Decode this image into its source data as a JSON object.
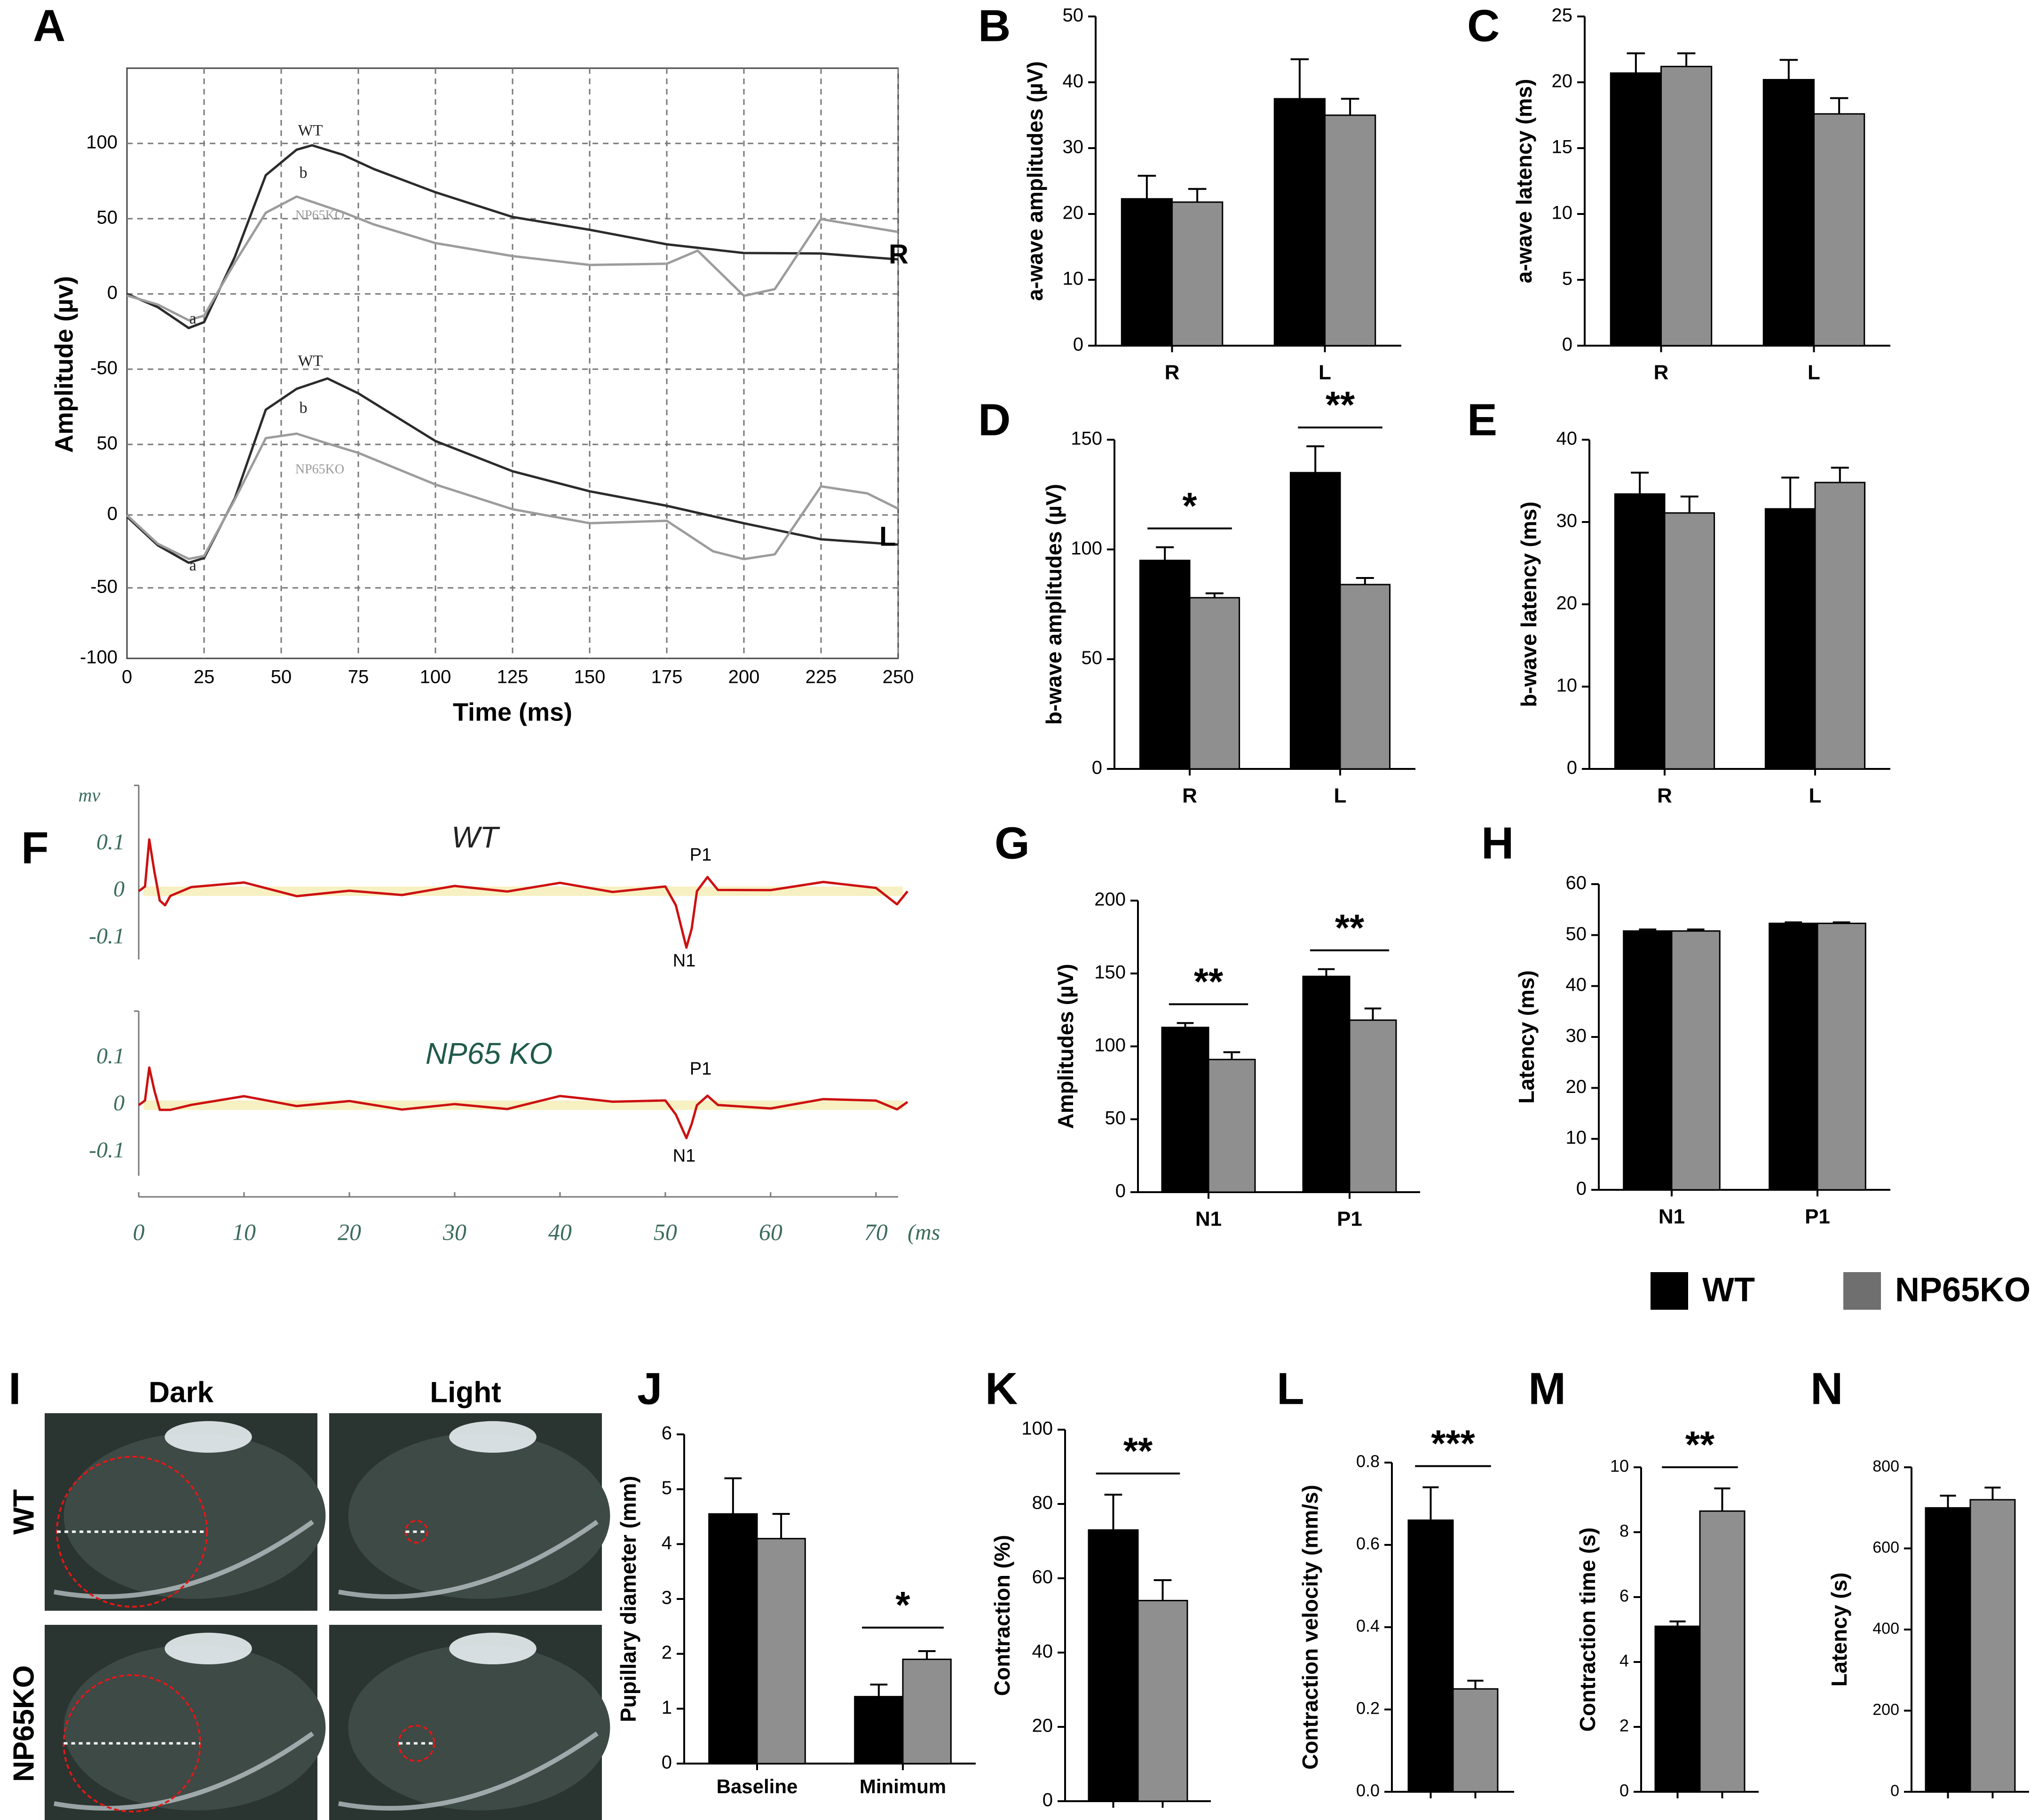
{
  "figure": {
    "panel_letters": [
      "A",
      "B",
      "C",
      "D",
      "E",
      "F",
      "G",
      "H",
      "I",
      "J",
      "K",
      "L",
      "M",
      "N"
    ],
    "legend": {
      "items": [
        {
          "label": "WT",
          "color": "#000000"
        },
        {
          "label": "NP65KO",
          "color": "#8f8f8f"
        }
      ]
    },
    "colors": {
      "wt": "#000000",
      "ko": "#8f8f8f",
      "trace_red": "#cc1111",
      "photo_bg": "#2a3430",
      "ring": "#e01818"
    }
  },
  "chart_data": [
    {
      "panel": "A",
      "type": "line",
      "xlabel": "Time (ms)",
      "ylabel": "Amplitude (µv)",
      "x_ticks": [
        "0",
        "25",
        "50",
        "75",
        "100",
        "125",
        "150",
        "175",
        "200",
        "225",
        "250"
      ],
      "y_ticks": [
        "100",
        "50",
        "0",
        "-50",
        "50",
        "0",
        "-50",
        "-100"
      ],
      "trace_labels": [
        "WT",
        "b",
        "NP65KO",
        "a"
      ],
      "channel_labels": [
        "R",
        "L"
      ],
      "xlim": [
        0,
        250
      ],
      "series": [
        {
          "name": "WT R",
          "x": [
            0,
            10,
            20,
            25,
            35,
            45,
            55,
            60,
            70,
            80,
            100,
            125,
            150,
            175,
            200,
            225,
            250
          ],
          "y": [
            0,
            -10,
            -22,
            -20,
            25,
            80,
            95,
            100,
            92,
            82,
            68,
            50,
            42,
            34,
            28,
            26,
            22
          ]
        },
        {
          "name": "NP65KO R",
          "x": [
            0,
            10,
            20,
            25,
            35,
            45,
            55,
            60,
            70,
            80,
            100,
            125,
            150,
            175,
            185,
            200,
            210,
            225,
            250
          ],
          "y": [
            0,
            -8,
            -18,
            -15,
            20,
            55,
            65,
            62,
            55,
            45,
            35,
            25,
            18,
            20,
            30,
            0,
            3,
            50,
            40
          ]
        },
        {
          "name": "WT L",
          "x": [
            0,
            10,
            20,
            25,
            35,
            45,
            55,
            65,
            75,
            100,
            125,
            150,
            175,
            200,
            225,
            250
          ],
          "y": [
            0,
            -20,
            -33,
            -28,
            10,
            70,
            85,
            90,
            80,
            50,
            30,
            15,
            5,
            -5,
            -15,
            -20
          ]
        },
        {
          "name": "NP65KO L",
          "x": [
            0,
            10,
            20,
            25,
            35,
            45,
            55,
            65,
            75,
            100,
            125,
            150,
            175,
            190,
            200,
            210,
            225,
            240,
            250
          ],
          "y": [
            0,
            -18,
            -30,
            -26,
            10,
            50,
            55,
            48,
            40,
            20,
            5,
            -5,
            -5,
            -25,
            -30,
            -25,
            20,
            15,
            5
          ]
        }
      ]
    },
    {
      "panel": "B",
      "type": "bar",
      "ylabel": "a-wave amplitudes (µV)",
      "categories": [
        "R",
        "L"
      ],
      "ylim": [
        0,
        50
      ],
      "y_ticks": [
        "0",
        "10",
        "20",
        "30",
        "40",
        "50"
      ],
      "series": [
        {
          "name": "WT",
          "values": [
            22.3,
            37.5
          ],
          "errors": [
            3.5,
            6.0
          ]
        },
        {
          "name": "NP65KO",
          "values": [
            21.8,
            35.0
          ],
          "errors": [
            2.0,
            2.5
          ]
        }
      ],
      "significance": []
    },
    {
      "panel": "C",
      "type": "bar",
      "ylabel": "a-wave latency (ms)",
      "categories": [
        "R",
        "L"
      ],
      "ylim": [
        0,
        25
      ],
      "y_ticks": [
        "0",
        "5",
        "10",
        "15",
        "20",
        "25"
      ],
      "series": [
        {
          "name": "WT",
          "values": [
            20.7,
            20.2
          ],
          "errors": [
            1.5,
            1.5
          ]
        },
        {
          "name": "NP65KO",
          "values": [
            21.2,
            17.6
          ],
          "errors": [
            1.0,
            1.2
          ]
        }
      ],
      "significance": []
    },
    {
      "panel": "D",
      "type": "bar",
      "ylabel": "b-wave amplitudes (µV)",
      "categories": [
        "R",
        "L"
      ],
      "ylim": [
        0,
        150
      ],
      "y_ticks": [
        "0",
        "50",
        "100",
        "150"
      ],
      "series": [
        {
          "name": "WT",
          "values": [
            95,
            135
          ],
          "errors": [
            6,
            12
          ]
        },
        {
          "name": "NP65KO",
          "values": [
            78,
            84
          ],
          "errors": [
            2,
            3
          ]
        }
      ],
      "significance": [
        "*",
        "**"
      ]
    },
    {
      "panel": "E",
      "type": "bar",
      "ylabel": "b-wave latency (ms)",
      "categories": [
        "R",
        "L"
      ],
      "ylim": [
        0,
        40
      ],
      "y_ticks": [
        "0",
        "10",
        "20",
        "30",
        "40"
      ],
      "series": [
        {
          "name": "WT",
          "values": [
            33.4,
            31.6
          ],
          "errors": [
            2.6,
            3.8
          ]
        },
        {
          "name": "NP65KO",
          "values": [
            31.1,
            34.8
          ],
          "errors": [
            2.0,
            1.8
          ]
        }
      ],
      "significance": []
    },
    {
      "panel": "F",
      "type": "line",
      "x_ticks": [
        "0",
        "10",
        "20",
        "30",
        "40",
        "50",
        "60",
        "70"
      ],
      "x_unit": "(ms",
      "y_unit": "mv",
      "y_ticks": [
        "0.1",
        "0",
        "-0.1"
      ],
      "groups": [
        "WT",
        "NP65 KO"
      ],
      "peak_labels": [
        "P1",
        "N1"
      ],
      "xlim": [
        0,
        73
      ],
      "series": [
        {
          "name": "WT",
          "x": [
            0,
            0.6,
            1,
            1.5,
            2,
            2.5,
            3,
            5,
            10,
            15,
            20,
            25,
            30,
            35,
            40,
            45,
            50,
            51,
            52,
            52.5,
            53,
            54,
            55,
            60,
            65,
            70,
            72,
            73
          ],
          "y": [
            0,
            0.01,
            0.11,
            0.04,
            -0.02,
            -0.03,
            -0.01,
            0.0,
            0.01,
            -0.01,
            0.01,
            0.0,
            0.01,
            -0.01,
            0.01,
            0.0,
            0.01,
            -0.03,
            -0.12,
            -0.08,
            0.0,
            0.03,
            0.01,
            0.0,
            0.01,
            0.0,
            -0.02,
            -0.01
          ]
        },
        {
          "name": "NP65 KO",
          "x": [
            0,
            0.6,
            1,
            1.5,
            2,
            3,
            5,
            10,
            15,
            20,
            25,
            30,
            35,
            40,
            45,
            50,
            51,
            52,
            52.5,
            53,
            54,
            55,
            60,
            65,
            70,
            72,
            73
          ],
          "y": [
            0,
            0.01,
            0.08,
            0.03,
            -0.01,
            -0.01,
            0.0,
            0.01,
            -0.01,
            0.01,
            0.0,
            0.01,
            -0.01,
            0.01,
            0.0,
            0.01,
            -0.02,
            -0.07,
            -0.04,
            0.0,
            0.02,
            0.01,
            0.0,
            0.01,
            0.0,
            -0.01,
            0.0
          ]
        }
      ]
    },
    {
      "panel": "G",
      "type": "bar",
      "ylabel": "Amplitudes (µV)",
      "categories": [
        "N1",
        "P1"
      ],
      "ylim": [
        0,
        200
      ],
      "y_ticks": [
        "0",
        "50",
        "100",
        "150",
        "200"
      ],
      "series": [
        {
          "name": "WT",
          "values": [
            113,
            148
          ],
          "errors": [
            3,
            5
          ]
        },
        {
          "name": "NP65KO",
          "values": [
            91,
            118
          ],
          "errors": [
            5,
            8
          ]
        }
      ],
      "significance": [
        "**",
        "**"
      ]
    },
    {
      "panel": "H",
      "type": "bar",
      "ylabel": "Latency (ms)",
      "categories": [
        "N1",
        "P1"
      ],
      "ylim": [
        0,
        60
      ],
      "y_ticks": [
        "0",
        "10",
        "20",
        "30",
        "40",
        "50",
        "60"
      ],
      "series": [
        {
          "name": "WT",
          "values": [
            50.8,
            52.3
          ],
          "errors": [
            0.3,
            0.2
          ]
        },
        {
          "name": "NP65KO",
          "values": [
            50.8,
            52.3
          ],
          "errors": [
            0.3,
            0.2
          ]
        }
      ],
      "significance": []
    },
    {
      "panel": "J",
      "type": "bar",
      "ylabel": "Pupillary diameter (mm)",
      "categories": [
        "Baseline",
        "Minimum"
      ],
      "ylim": [
        0,
        6
      ],
      "y_ticks": [
        "0",
        "1",
        "2",
        "3",
        "4",
        "5",
        "6"
      ],
      "series": [
        {
          "name": "WT",
          "values": [
            4.55,
            1.22
          ],
          "errors": [
            0.65,
            0.22
          ]
        },
        {
          "name": "NP65KO",
          "values": [
            4.1,
            1.9
          ],
          "errors": [
            0.45,
            0.15
          ]
        }
      ],
      "significance": [
        "",
        "*"
      ]
    },
    {
      "panel": "K",
      "type": "bar",
      "ylabel": "Contraction (%)",
      "categories": [
        ""
      ],
      "ylim": [
        0,
        100
      ],
      "y_ticks": [
        "0",
        "20",
        "40",
        "60",
        "80",
        "100"
      ],
      "series": [
        {
          "name": "WT",
          "values": [
            73
          ],
          "errors": [
            9.5
          ]
        },
        {
          "name": "NP65KO",
          "values": [
            54
          ],
          "errors": [
            5.5
          ]
        }
      ],
      "significance": [
        "**"
      ]
    },
    {
      "panel": "L",
      "type": "bar",
      "ylabel": "Contraction velocity (mm/s)",
      "categories": [
        ""
      ],
      "ylim": [
        0,
        0.8
      ],
      "y_ticks": [
        "0.0",
        "0.2",
        "0.4",
        "0.6",
        "0.8"
      ],
      "series": [
        {
          "name": "WT",
          "values": [
            0.66
          ],
          "errors": [
            0.08
          ]
        },
        {
          "name": "NP65KO",
          "values": [
            0.25
          ],
          "errors": [
            0.02
          ]
        }
      ],
      "significance": [
        "***"
      ]
    },
    {
      "panel": "M",
      "type": "bar",
      "ylabel": "Contraction time (s)",
      "categories": [
        ""
      ],
      "ylim": [
        0,
        10
      ],
      "y_ticks": [
        "0",
        "2",
        "4",
        "6",
        "8",
        "10"
      ],
      "series": [
        {
          "name": "WT",
          "values": [
            5.1
          ],
          "errors": [
            0.15
          ]
        },
        {
          "name": "NP65KO",
          "values": [
            8.65
          ],
          "errors": [
            0.7
          ]
        }
      ],
      "significance": [
        "**"
      ]
    },
    {
      "panel": "N",
      "type": "bar",
      "ylabel": "Latency (s)",
      "categories": [
        ""
      ],
      "ylim": [
        0,
        800
      ],
      "y_ticks": [
        "0",
        "200",
        "400",
        "600",
        "800"
      ],
      "series": [
        {
          "name": "WT",
          "values": [
            700
          ],
          "errors": [
            30
          ]
        },
        {
          "name": "NP65KO",
          "values": [
            720
          ],
          "errors": [
            30
          ]
        }
      ],
      "significance": []
    }
  ],
  "eye_photos": {
    "column_labels": [
      "Dark",
      "Light"
    ],
    "row_labels": [
      "WT",
      "NP65KO"
    ],
    "pupil_diameter_fraction": [
      [
        0.55,
        0.08
      ],
      [
        0.5,
        0.13
      ]
    ]
  }
}
